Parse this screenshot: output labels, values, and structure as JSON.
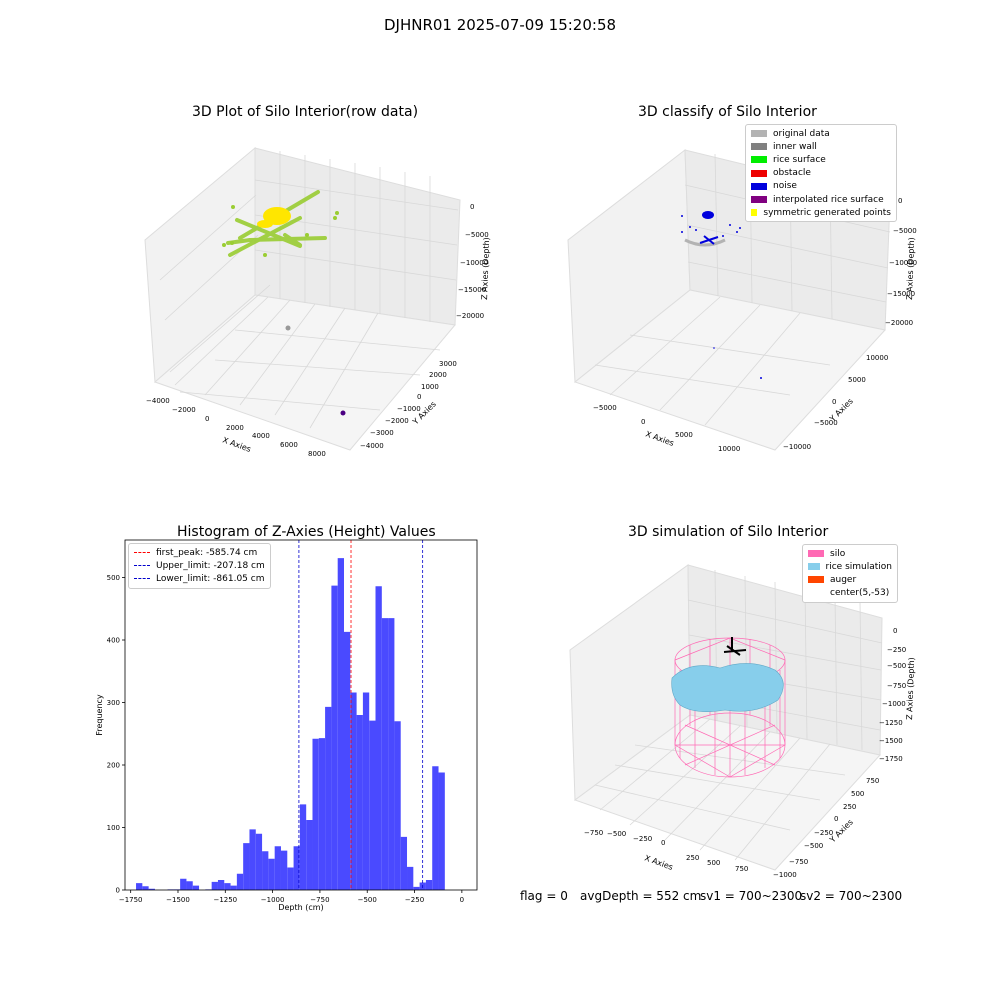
{
  "suptitle": "DJHNR01 2025-07-09 15:20:58",
  "footer": {
    "flag": "flag = 0",
    "avg_depth": "avgDepth = 552 cm",
    "sv1": "sv1 = 700~2300",
    "sv2": "sv2 = 700~2300"
  },
  "chart_data": [
    {
      "type": "scatter",
      "title": "3D Plot of Silo Interior(row data)",
      "xlabel": "X Axies",
      "ylabel": "Y Axies",
      "zlabel": "Z Axies (Depth)",
      "x_ticks": [
        "−4000",
        "−2000",
        "0",
        "2000",
        "4000",
        "6000",
        "8000"
      ],
      "y_ticks": [
        "−4000",
        "−3000",
        "−2000",
        "−1000",
        "0",
        "1000",
        "2000",
        "3000"
      ],
      "z_ticks": [
        "0",
        "−5000",
        "−10000",
        "−15000",
        "−20000"
      ],
      "colors": {
        "points": "#9acd32",
        "top": "#ffe600",
        "outlier": "#999999",
        "far": "#4b0082"
      }
    },
    {
      "type": "scatter",
      "title": "3D classify of Silo Interior",
      "xlabel": "X Axies",
      "ylabel": "Y Axies",
      "zlabel": "Z Axies (Depth)",
      "x_ticks": [
        "−5000",
        "0",
        "5000",
        "10000"
      ],
      "y_ticks": [
        "−10000",
        "−5000",
        "0",
        "5000",
        "10000"
      ],
      "z_ticks": [
        "0",
        "−5000",
        "−10000",
        "−15000",
        "−20000"
      ],
      "legend": [
        {
          "label": "original data",
          "color": "#b3b3b3"
        },
        {
          "label": "inner wall",
          "color": "#808080"
        },
        {
          "label": "rice surface",
          "color": "#00ee00"
        },
        {
          "label": "obstacle",
          "color": "#ee0000"
        },
        {
          "label": "noise",
          "color": "#0000dd"
        },
        {
          "label": "interpolated rice surface",
          "color": "#800080"
        },
        {
          "label": "symmetric generated points",
          "color": "#ffff00"
        }
      ]
    },
    {
      "type": "bar",
      "title": "Histogram of Z-Axies (Height) Values",
      "xlabel": "Depth (cm)",
      "ylabel": "Frequency",
      "xlim": [
        -1780,
        80
      ],
      "ylim": [
        0,
        560
      ],
      "x_ticks": [
        -1750,
        -1500,
        -1250,
        -1000,
        -750,
        -500,
        -250,
        0
      ],
      "x_tick_labels": [
        "−1750",
        "−1500",
        "−1250",
        "−1000",
        "−750",
        "−500",
        "−250",
        "0"
      ],
      "y_ticks": [
        0,
        100,
        200,
        300,
        400,
        500
      ],
      "bin_start": -1755,
      "bin_width": 33.3,
      "values": [
        0,
        11,
        6,
        2,
        0,
        0,
        1,
        1,
        18,
        14,
        7,
        0,
        1,
        13,
        16,
        11,
        7,
        26,
        75,
        97,
        90,
        62,
        50,
        70,
        63,
        36,
        70,
        137,
        112,
        242,
        243,
        293,
        487,
        531,
        413,
        316,
        280,
        316,
        271,
        486,
        435,
        435,
        270,
        85,
        37,
        5,
        12,
        16,
        198,
        188
      ],
      "bar_color": "#4a4aff",
      "lines": [
        {
          "label": "first_peak: -585.74 cm",
          "x": -585.74,
          "color": "#ff0000"
        },
        {
          "label": "Upper_limit: -207.18 cm",
          "x": -207.18,
          "color": "#0000cc"
        },
        {
          "label": "Lower_limit: -861.05 cm",
          "x": -861.05,
          "color": "#0000cc"
        }
      ]
    },
    {
      "type": "scatter",
      "title": "3D simulation of Silo Interior",
      "xlabel": "X Axies",
      "ylabel": "Y Axies",
      "zlabel": "Z Axies (Depth)",
      "x_ticks": [
        "−750",
        "−500",
        "−250",
        "0",
        "250",
        "500",
        "750"
      ],
      "y_ticks": [
        "−1000",
        "−750",
        "−500",
        "−250",
        "0",
        "250",
        "500",
        "750"
      ],
      "z_ticks": [
        "0",
        "−250",
        "−500",
        "−750",
        "−1000",
        "−1250",
        "−1500",
        "−1750"
      ],
      "legend": [
        {
          "label": "silo",
          "color": "#ff69b4"
        },
        {
          "label": "rice simulation",
          "color": "#87ceeb"
        },
        {
          "label": "auger",
          "color": "#ff4500"
        },
        {
          "label": "center(5,-53)",
          "color": "#ffffff"
        }
      ]
    }
  ]
}
